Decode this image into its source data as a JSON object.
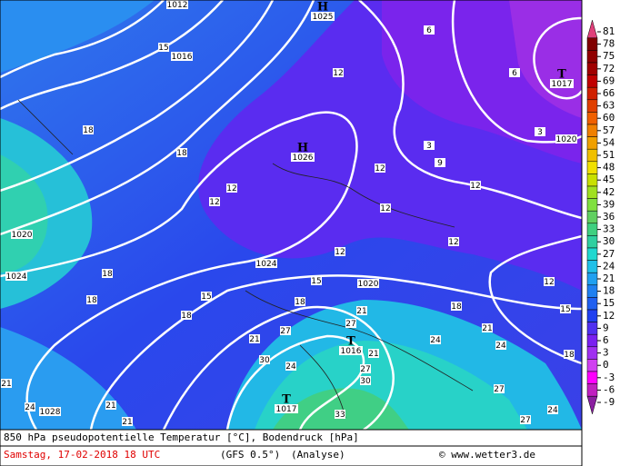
{
  "map": {
    "centers": [
      {
        "symbol": "H",
        "value": "1025"
      },
      {
        "symbol": "H",
        "value": "1026"
      },
      {
        "symbol": "T",
        "value": "1017"
      },
      {
        "symbol": "T",
        "value": "1016"
      },
      {
        "symbol": "T",
        "value": "1017"
      }
    ],
    "pressure_labels": [
      "1012",
      "1016",
      "1020",
      "1024",
      "1028",
      "1024",
      "1020",
      "1020"
    ],
    "temperature_labels": [
      15,
      18,
      18,
      12,
      12,
      12,
      12,
      12,
      12,
      12,
      12,
      12,
      9,
      3,
      6,
      3,
      6,
      15,
      15,
      15,
      18,
      18,
      18,
      18,
      18,
      18,
      21,
      21,
      21,
      21,
      21,
      21,
      21,
      24,
      24,
      24,
      24,
      24,
      27,
      27,
      27,
      27,
      27,
      30,
      30,
      33
    ]
  },
  "legend": {
    "values": [
      81,
      78,
      75,
      72,
      69,
      66,
      63,
      60,
      57,
      54,
      51,
      48,
      45,
      42,
      39,
      36,
      33,
      30,
      27,
      24,
      21,
      18,
      15,
      12,
      9,
      6,
      3,
      0,
      -3,
      -6,
      -9
    ],
    "colors": [
      "#e0407a",
      "#800000",
      "#900000",
      "#a00000",
      "#c00000",
      "#d02000",
      "#e04000",
      "#f06000",
      "#f08000",
      "#f0a000",
      "#f0c000",
      "#f0e000",
      "#c8e000",
      "#a0e020",
      "#80e040",
      "#60d060",
      "#40d080",
      "#30d0a0",
      "#20d8d0",
      "#20c0e8",
      "#20a0f0",
      "#2080f0",
      "#2060f0",
      "#2040f0",
      "#5030f0",
      "#7a20f0",
      "#a030f0",
      "#d040f0",
      "#ff00ff",
      "#c020c0",
      "#8a1fa0"
    ]
  },
  "footer": {
    "title": "850 hPa pseudopotentielle Temperatur [°C], Bodendruck [hPa]",
    "date": "Samstag, 17-02-2018  18 UTC",
    "model": "(GFS 0.5°)",
    "run": "(Analyse)",
    "credit": "© www.wetter3.de"
  }
}
